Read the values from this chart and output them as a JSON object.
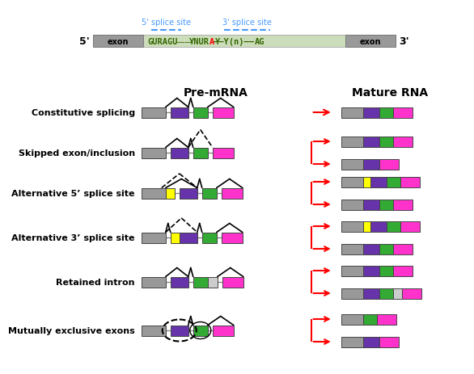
{
  "colors": {
    "gray": "#999999",
    "purple": "#6633AA",
    "green": "#33AA33",
    "magenta": "#FF33CC",
    "yellow": "#FFFF00",
    "light_gray": "#CCCCCC",
    "intron_bg": "#CCDDBB",
    "intron_line": "#888888",
    "red": "#FF0000",
    "black": "#000000",
    "white": "#FFFFFF",
    "blue_dashed": "#4499FF",
    "dark_green_text": "#336600"
  },
  "row_labels": [
    "Constitutive splicing",
    "Skipped exon/inclusion",
    "Alternative 5’ splice site",
    "Alternative 3’ splice site",
    "Retained intron",
    "Mutually exclusive exons"
  ],
  "premrna_label": "Pre-mRNA",
  "mature_label": "Mature RNA",
  "five_prime_label": "5'",
  "three_prime_label": "3'",
  "splice5_label": "5' splice site",
  "splice3_label": "3' splice site",
  "exon_label": "exon"
}
